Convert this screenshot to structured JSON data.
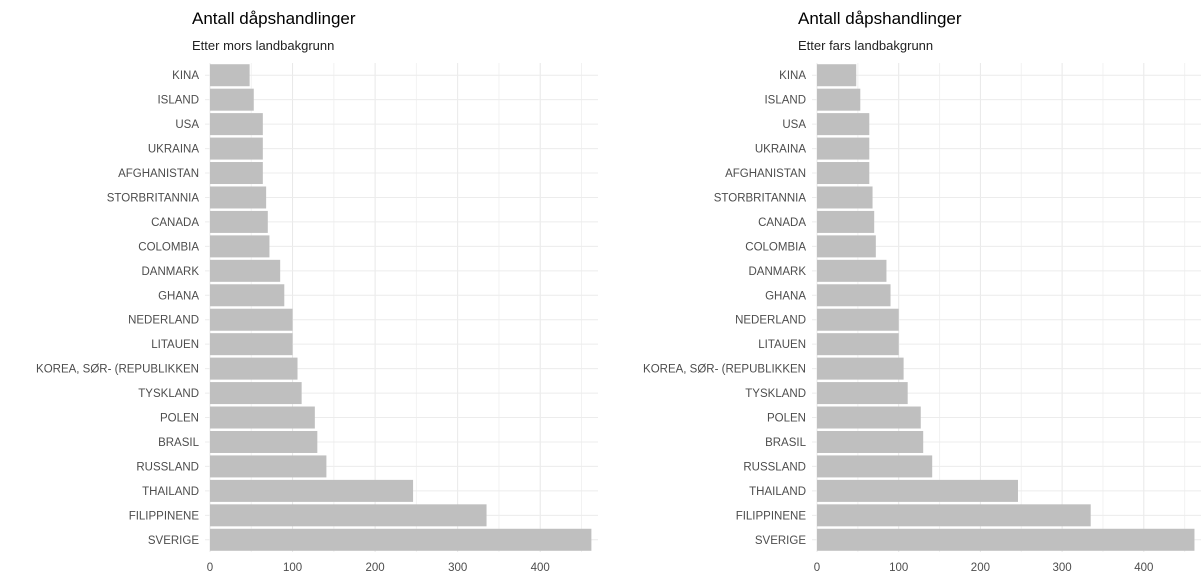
{
  "chart_data": [
    {
      "type": "bar",
      "orientation": "horizontal",
      "title": "Antall dåpshandlinger",
      "subtitle": "Etter mors landbakgrunn",
      "xlabel": "",
      "ylabel": "",
      "categories": [
        "KINA",
        "ISLAND",
        "USA",
        "UKRAINA",
        "AFGHANISTAN",
        "STORBRITANNIA",
        "CANADA",
        "COLOMBIA",
        "DANMARK",
        "GHANA",
        "NEDERLAND",
        "LITAUEN",
        "KOREA, SØR- (REPUBLIKKEN",
        "TYSKLAND",
        "POLEN",
        "BRASIL",
        "RUSSLAND",
        "THAILAND",
        "FILIPPINENE",
        "SVERIGE"
      ],
      "values": [
        48,
        53,
        64,
        64,
        64,
        68,
        70,
        72,
        85,
        90,
        100,
        100,
        106,
        111,
        127,
        130,
        141,
        246,
        335,
        462
      ],
      "xticks": [
        0,
        100,
        200,
        300,
        400
      ],
      "xlim": [
        0,
        470
      ],
      "grid": true,
      "bar_color": "#bfbfbf"
    },
    {
      "type": "bar",
      "orientation": "horizontal",
      "title": "Antall dåpshandlinger",
      "subtitle": "Etter fars landbakgrunn",
      "xlabel": "",
      "ylabel": "",
      "categories": [
        "KINA",
        "ISLAND",
        "USA",
        "UKRAINA",
        "AFGHANISTAN",
        "STORBRITANNIA",
        "CANADA",
        "COLOMBIA",
        "DANMARK",
        "GHANA",
        "NEDERLAND",
        "LITAUEN",
        "KOREA, SØR- (REPUBLIKKEN",
        "TYSKLAND",
        "POLEN",
        "BRASIL",
        "RUSSLAND",
        "THAILAND",
        "FILIPPINENE",
        "SVERIGE"
      ],
      "values": [
        48,
        53,
        64,
        64,
        64,
        68,
        70,
        72,
        85,
        90,
        100,
        100,
        106,
        111,
        127,
        130,
        141,
        246,
        335,
        462
      ],
      "xticks": [
        0,
        100,
        200,
        300,
        400
      ],
      "xlim": [
        0,
        470
      ],
      "grid": true,
      "bar_color": "#bfbfbf"
    }
  ]
}
